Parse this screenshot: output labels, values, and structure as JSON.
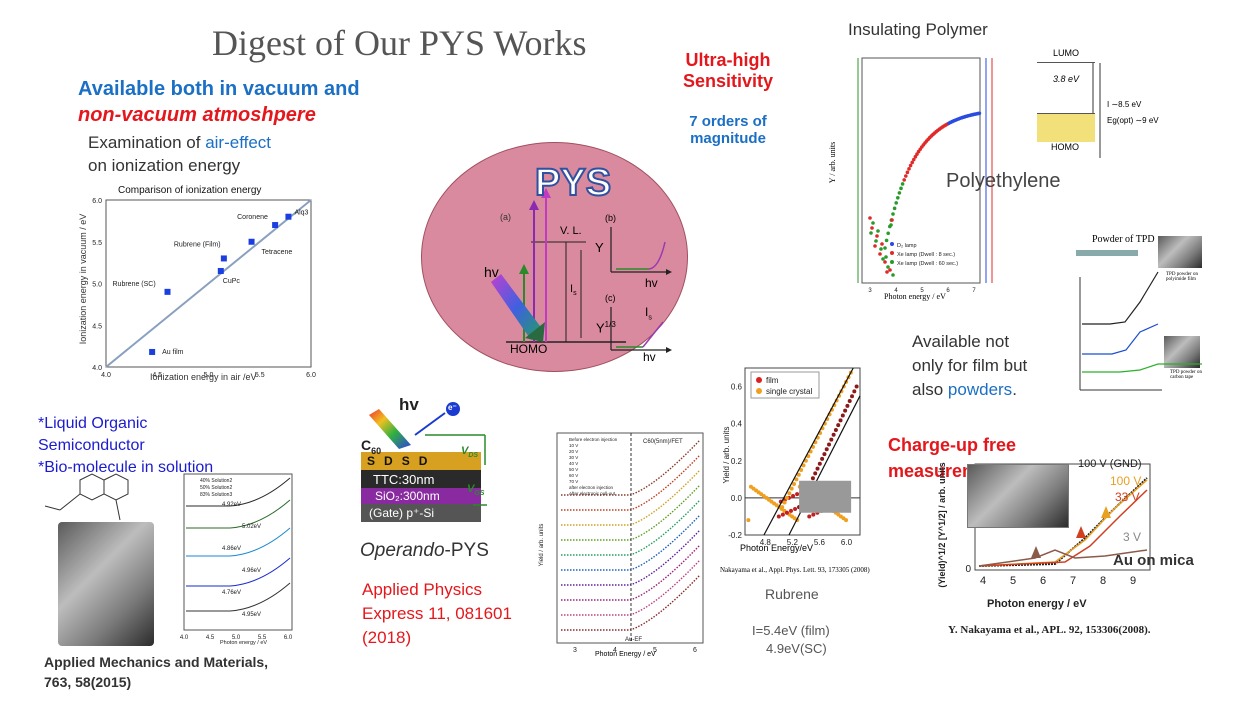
{
  "slide": {
    "title": "Digest of Our PYS Works"
  },
  "vacuum_block": {
    "line1": "Available both in vacuum and",
    "line2": "non-vacuum atmoshpere",
    "sub1_a": "Examination of ",
    "sub1_b": "air-effect",
    "sub2": "on ionization energy"
  },
  "ie_chart": {
    "title": "Comparison of ionization energy",
    "xlabel": "Ionization energy in air /eV",
    "ylabel": "Ionization energy in vacuum / eV",
    "xticks": [
      "4.0",
      "4.5",
      "5.0",
      "5.5",
      "6.0"
    ],
    "yticks": [
      "4.0",
      "4.5",
      "5.0",
      "5.5",
      "6.0"
    ],
    "labels": [
      "Coronene",
      "Alq3",
      "Rubrene (Film)",
      "Tetracene",
      "Rubrene (SC)",
      "CuPc",
      "Au film"
    ]
  },
  "chart_data": [
    {
      "type": "scatter",
      "title": "Comparison of ionization energy",
      "xlabel": "Ionization energy in air /eV",
      "ylabel": "Ionization energy in vacuum / eV",
      "xlim": [
        4.0,
        6.0
      ],
      "ylim": [
        4.0,
        6.0
      ],
      "points": [
        {
          "label": "Au film",
          "x": 4.45,
          "y": 4.18
        },
        {
          "label": "Rubrene (SC)",
          "x": 4.6,
          "y": 4.9
        },
        {
          "label": "CuPc",
          "x": 5.12,
          "y": 5.15
        },
        {
          "label": "Rubrene (Film)",
          "x": 5.15,
          "y": 5.3
        },
        {
          "label": "Tetracene",
          "x": 5.42,
          "y": 5.5
        },
        {
          "label": "Coronene",
          "x": 5.65,
          "y": 5.7
        },
        {
          "label": "Alq3",
          "x": 5.78,
          "y": 5.8
        }
      ],
      "line": [
        [
          4.0,
          4.0
        ],
        [
          6.0,
          6.0
        ]
      ]
    },
    {
      "type": "scatter",
      "xlabel": "Photon Energy/eV",
      "xlim": [
        4.5,
        6.2
      ],
      "ylim": [
        -0.2,
        0.7
      ],
      "xticks": [
        "4.8",
        "5.2",
        "5.6",
        "6.0"
      ],
      "yticks": [
        "-0.2",
        "0.0",
        "0.2",
        "0.4",
        "0.6"
      ],
      "series": [
        {
          "name": "film",
          "color": "#e02020"
        },
        {
          "name": "single crystal",
          "color": "#f0a020"
        }
      ]
    }
  ],
  "pys_diagram": {
    "logo": "PYS",
    "a": "(a)",
    "b": "(b)",
    "c": "(c)",
    "vl": "V. L.",
    "hv": "hv",
    "is": "I",
    "is_sub": "s",
    "homo": "HOMO",
    "y": "Y",
    "y13": "Y",
    "y13_sup": "1/3",
    "hv_b": "hv",
    "hv_c": "hv",
    "is_c": "I",
    "is_c_sub": "s"
  },
  "sensitivity": {
    "line1": "Ultra-high",
    "line2": "Sensitivity",
    "sub1": "7 orders of",
    "sub2": "magnitude"
  },
  "polymer": {
    "title": "Insulating Polymer",
    "name": "Polyethylene",
    "xlabel": "Photon energy  /  eV",
    "ylabel": "Y  /  arb. units",
    "legend": [
      "D₂ lamp",
      "Xe lamp (Dwell : 8 sec.)",
      "Xe lamp (Dwell : 60 sec.)"
    ],
    "lumo": "LUMO",
    "homo": "HOMO",
    "ev38": "3.8 eV",
    "i85": "I ∼8.5 eV",
    "eg": "Eg(opt) ∼9 eV",
    "xticks": [
      "3",
      "4",
      "5",
      "6",
      "7"
    ]
  },
  "powder": {
    "title": "Powder of TPD",
    "caption1": "TPD powder on polyimide film",
    "caption2": "TPD powder on carbon tape",
    "text1": "Available not",
    "text2": "only for film but",
    "text3_a": "also ",
    "text3_b": "powders",
    "text3_c": "."
  },
  "liquid": {
    "line1": "*Liquid Organic",
    "line2": "Semiconductor",
    "line3": "*Bio-molecule in solution",
    "legend": [
      "40% Solution2",
      "50% Solution2",
      "83% Solution3"
    ],
    "values": [
      "4.92eV",
      "5.02eV",
      "4.86eV",
      "4.96eV",
      "4.76eV",
      "4.95eV"
    ],
    "xlabel": "Photon energy / eV",
    "ylabel": "Yield^(1/3) / arb.units",
    "xticks": [
      "4.0",
      "4.5",
      "5.0",
      "5.5",
      "6.0"
    ],
    "citation1": "Applied Mechanics and Materials,",
    "citation2": "763, 58(2015)"
  },
  "operando": {
    "hv": "hv",
    "e": "e⁻",
    "c60": "C",
    "c60_sub": "60",
    "ttc": "TTC:30nm",
    "sio2": "SiO₂:300nm",
    "gate": "(Gate) p⁺-Si",
    "vds": "V",
    "vds_sub": "DS",
    "vgs": "V",
    "vgs_sub": "GS",
    "s": "S",
    "d": "D",
    "label_a": "Operando",
    "label_b": "-PYS",
    "cite1": "Applied Physics",
    "cite2": "Express 11, 081601",
    "cite3": "(2018)"
  },
  "fet_chart": {
    "title": "C60(5nm)/FET",
    "xlabel": "Photon Energy / eV",
    "ylabel": "Yield / arb. units",
    "xticks": [
      "3",
      "4",
      "5",
      "6"
    ],
    "legend": [
      "Before electron injection",
      "10 V",
      "20 V",
      "30 V",
      "40 V",
      "50 V",
      "60 V",
      "70 V",
      "after electron injection",
      "After electronic pull-out"
    ],
    "marker": "Au-EF"
  },
  "rubrene": {
    "ylabel": "Yield / arb. units",
    "citation": "Nakayama et al., Appl. Phys. Lett. 93, 173305 (2008)",
    "name": "Rubrene",
    "ie1": "I=5.4eV (film)",
    "ie2": "4.9eV(SC)"
  },
  "chargeup": {
    "line1": "Charge-up free",
    "line2": "measurements",
    "v100": "100 V (GND)",
    "v100b": "100 V",
    "v33": "33 V",
    "v3": "3 V",
    "au": "Au on mica",
    "xlabel": "Photon energy / eV",
    "ylabel": "(Yield)^1/2 [Y^1/2] / arb. units",
    "xticks": [
      "4",
      "5",
      "6",
      "7",
      "8",
      "9"
    ],
    "y0": "0",
    "citation": "Y. Nakayama et al., APL. 92, 153306(2008)."
  },
  "colors": {
    "blue": "#1b6fc4",
    "red": "#e4171c",
    "pys_oval": "#d98a9e"
  }
}
